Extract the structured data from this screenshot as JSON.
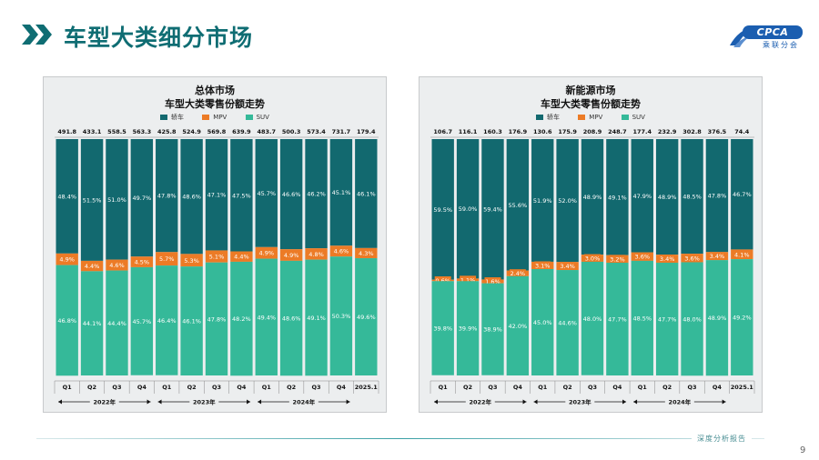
{
  "header": {
    "title": "车型大类细分市场",
    "logo_text": "CPCA",
    "logo_sub": "乘联分会",
    "logo_caption": "CPCA"
  },
  "footer": {
    "label": "深度分析报告",
    "page_number": "9"
  },
  "colors": {
    "sedan": "#12696f",
    "mpv": "#ec7b26",
    "suv": "#35b999",
    "title": "#0f6d73"
  },
  "chart_data": [
    {
      "type": "stacked_bar_100",
      "title": "总体市场",
      "subtitle": "车型大类零售份额走势",
      "legend": [
        "轿车",
        "MPV",
        "SUV"
      ],
      "categories": [
        "Q1",
        "Q2",
        "Q3",
        "Q4",
        "Q1",
        "Q2",
        "Q3",
        "Q4",
        "Q1",
        "Q2",
        "Q3",
        "Q4",
        "2025.1"
      ],
      "year_groups": [
        {
          "label": "2022年",
          "count": 4
        },
        {
          "label": "2023年",
          "count": 4
        },
        {
          "label": "2024年",
          "count": 4
        }
      ],
      "totals": [
        "491.8",
        "433.1",
        "558.5",
        "563.3",
        "425.8",
        "524.9",
        "569.8",
        "639.9",
        "483.7",
        "500.3",
        "573.4",
        "731.7",
        "179.4"
      ],
      "series": [
        {
          "name": "轿车",
          "values": [
            48.4,
            51.5,
            51.0,
            49.7,
            47.8,
            48.6,
            47.1,
            47.5,
            45.7,
            46.6,
            46.2,
            45.1,
            46.1
          ]
        },
        {
          "name": "MPV",
          "values": [
            4.9,
            4.4,
            4.6,
            4.5,
            5.7,
            5.3,
            5.1,
            4.4,
            4.9,
            4.9,
            4.8,
            4.6,
            4.3
          ]
        },
        {
          "name": "SUV",
          "values": [
            46.8,
            44.1,
            44.4,
            45.7,
            46.4,
            46.1,
            47.8,
            48.2,
            49.4,
            48.6,
            49.1,
            50.3,
            49.6
          ]
        }
      ],
      "ylim": [
        0,
        100
      ]
    },
    {
      "type": "stacked_bar_100",
      "title": "新能源市场",
      "subtitle": "车型大类零售份额走势",
      "legend": [
        "轿车",
        "MPV",
        "SUV"
      ],
      "categories": [
        "Q1",
        "Q2",
        "Q3",
        "Q4",
        "Q1",
        "Q2",
        "Q3",
        "Q4",
        "Q1",
        "Q2",
        "Q3",
        "Q4",
        "2025.1"
      ],
      "year_groups": [
        {
          "label": "2022年",
          "count": 4
        },
        {
          "label": "2023年",
          "count": 4
        },
        {
          "label": "2024年",
          "count": 4
        }
      ],
      "totals": [
        "106.7",
        "116.1",
        "160.3",
        "176.9",
        "130.6",
        "175.9",
        "208.9",
        "248.7",
        "177.4",
        "232.9",
        "302.8",
        "376.5",
        "74.4"
      ],
      "series": [
        {
          "name": "轿车",
          "values": [
            59.5,
            59.0,
            59.4,
            55.6,
            51.9,
            52.0,
            48.9,
            49.1,
            47.9,
            48.9,
            48.5,
            47.8,
            46.7
          ]
        },
        {
          "name": "MPV",
          "values": [
            0.6,
            1.1,
            1.6,
            2.4,
            3.1,
            3.4,
            3.0,
            3.2,
            3.6,
            3.4,
            3.6,
            3.4,
            4.1
          ]
        },
        {
          "name": "SUV",
          "values": [
            39.8,
            39.9,
            38.9,
            42.0,
            45.0,
            44.6,
            48.0,
            47.7,
            48.5,
            47.7,
            48.0,
            48.9,
            49.2
          ]
        }
      ],
      "ylim": [
        0,
        100
      ]
    }
  ]
}
